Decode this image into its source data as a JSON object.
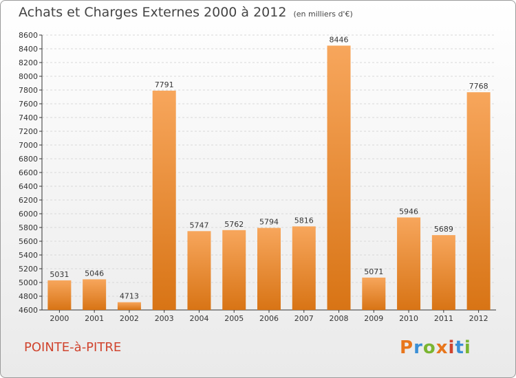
{
  "title": "Achats et Charges Externes 2000 à 2012",
  "unit": "(en milliers d'€)",
  "city": "POINTE-à-PITRE",
  "logo": {
    "text": "Proxiti",
    "letters": [
      "P",
      "r",
      "o",
      "x",
      "i",
      "t",
      "i"
    ],
    "colors": [
      "#e8761c",
      "#3a8fd6",
      "#7ab531",
      "#e8761c",
      "#d0442e",
      "#3a8fd6",
      "#7ab531"
    ]
  },
  "colors": {
    "bar_light": "#f7a65c",
    "bar_dark": "#d87415",
    "grid": "#d8d8d8",
    "axis": "#333333",
    "city": "#d0442e"
  },
  "chart_data": {
    "type": "bar",
    "categories": [
      "2000",
      "2001",
      "2002",
      "2003",
      "2004",
      "2005",
      "2006",
      "2007",
      "2008",
      "2009",
      "2010",
      "2011",
      "2012"
    ],
    "values": [
      5031,
      5046,
      4713,
      7791,
      5747,
      5762,
      5794,
      5816,
      8446,
      5071,
      5946,
      5689,
      7768
    ],
    "ylim": [
      4600,
      8600
    ],
    "yticks": [
      4600,
      4800,
      5000,
      5200,
      5400,
      5600,
      5800,
      6000,
      6200,
      6400,
      6600,
      6800,
      7000,
      7200,
      7400,
      7600,
      7800,
      8000,
      8200,
      8400,
      8600
    ],
    "grid": true
  }
}
